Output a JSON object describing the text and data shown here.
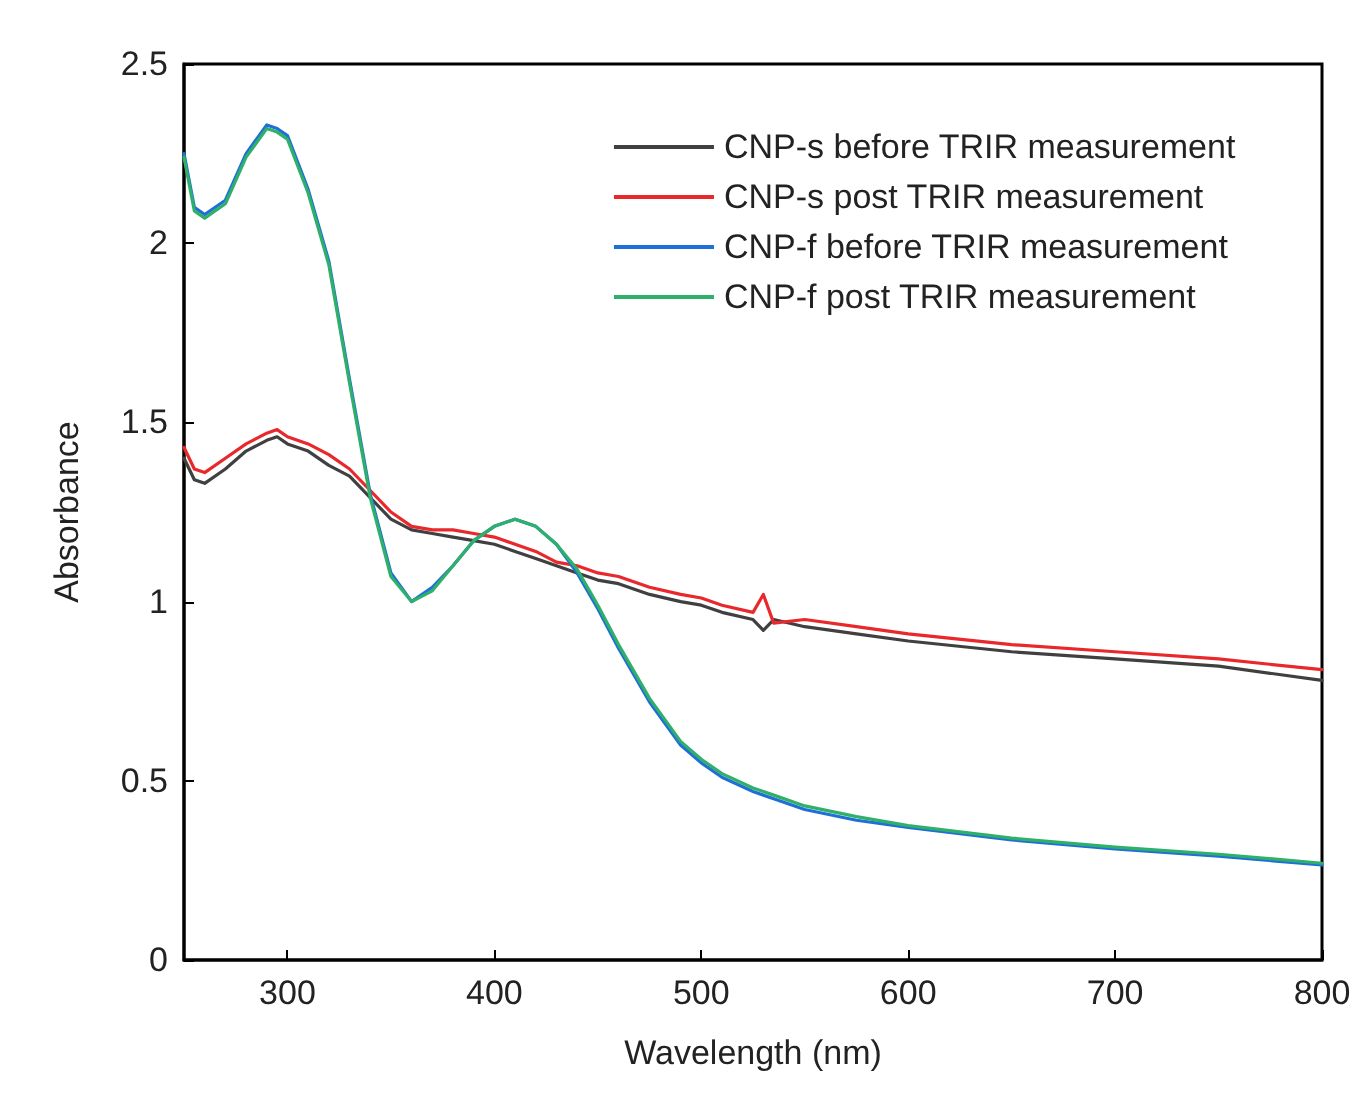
{
  "chart_data": {
    "type": "line",
    "xlabel": "Wavelength (nm)",
    "ylabel": "Absorbance",
    "xlim": [
      250,
      800
    ],
    "ylim": [
      0,
      2.5
    ],
    "xticks": [
      300,
      400,
      500,
      600,
      700,
      800
    ],
    "yticks": [
      0,
      0.5,
      1,
      1.5,
      {
        "value": 2,
        "label": "2"
      },
      2.5
    ],
    "grid": false,
    "legend": "top right",
    "marker": "none",
    "line_style": "solid",
    "x": [
      250,
      255,
      260,
      270,
      280,
      290,
      295,
      300,
      310,
      320,
      330,
      340,
      350,
      360,
      370,
      380,
      390,
      400,
      410,
      420,
      430,
      440,
      450,
      460,
      475,
      490,
      500,
      510,
      525,
      530,
      535,
      550,
      575,
      600,
      650,
      700,
      750,
      800
    ],
    "series": [
      {
        "name": "CNP-s before TRIR measurement",
        "color": "#404040",
        "values": [
          1.4,
          1.34,
          1.33,
          1.37,
          1.42,
          1.45,
          1.46,
          1.44,
          1.42,
          1.38,
          1.35,
          1.29,
          1.23,
          1.2,
          1.19,
          1.18,
          1.17,
          1.16,
          1.14,
          1.12,
          1.1,
          1.08,
          1.06,
          1.05,
          1.02,
          1.0,
          0.99,
          0.97,
          0.95,
          0.92,
          0.95,
          0.93,
          0.91,
          0.89,
          0.86,
          0.84,
          0.82,
          0.78
        ]
      },
      {
        "name": "CNP-s post TRIR measurement",
        "color": "#e8282b",
        "values": [
          1.43,
          1.37,
          1.36,
          1.4,
          1.44,
          1.47,
          1.48,
          1.46,
          1.44,
          1.41,
          1.37,
          1.31,
          1.25,
          1.21,
          1.2,
          1.2,
          1.19,
          1.18,
          1.16,
          1.14,
          1.11,
          1.1,
          1.08,
          1.07,
          1.04,
          1.02,
          1.01,
          0.99,
          0.97,
          1.02,
          0.94,
          0.95,
          0.93,
          0.91,
          0.88,
          0.86,
          0.84,
          0.81
        ]
      },
      {
        "name": "CNP-f before TRIR measurement",
        "color": "#1f6fd6",
        "values": [
          2.25,
          2.1,
          2.08,
          2.12,
          2.25,
          2.33,
          2.32,
          2.3,
          2.15,
          1.95,
          1.62,
          1.3,
          1.08,
          1.0,
          1.04,
          1.1,
          1.17,
          1.21,
          1.23,
          1.21,
          1.16,
          1.08,
          0.98,
          0.87,
          0.72,
          0.6,
          0.55,
          0.51,
          0.47,
          0.46,
          0.45,
          0.42,
          0.39,
          0.37,
          0.335,
          0.31,
          0.29,
          0.265
        ]
      },
      {
        "name": "CNP-f post TRIR measurement",
        "color": "#2fb06a",
        "values": [
          2.24,
          2.09,
          2.07,
          2.11,
          2.24,
          2.32,
          2.31,
          2.29,
          2.14,
          1.94,
          1.61,
          1.29,
          1.07,
          1.0,
          1.03,
          1.1,
          1.17,
          1.21,
          1.23,
          1.21,
          1.16,
          1.09,
          0.99,
          0.88,
          0.73,
          0.61,
          0.56,
          0.52,
          0.48,
          0.47,
          0.46,
          0.43,
          0.4,
          0.375,
          0.34,
          0.315,
          0.295,
          0.27
        ]
      }
    ]
  }
}
